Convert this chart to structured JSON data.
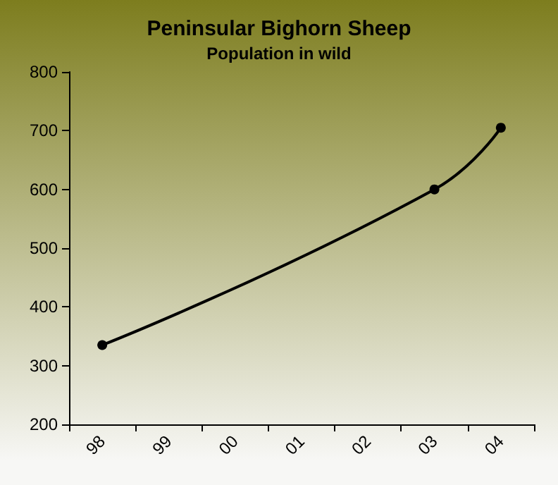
{
  "chart_data": {
    "type": "line",
    "title": "Peninsular Bighorn Sheep",
    "subtitle": "Population in wild",
    "categories": [
      "98",
      "99",
      "00",
      "01",
      "02",
      "03",
      "04"
    ],
    "series": [
      {
        "color": "#000000",
        "values": [
          335,
          null,
          null,
          null,
          null,
          600,
          705
        ]
      }
    ],
    "ylim": [
      200,
      800
    ],
    "yticks": [
      200,
      300,
      400,
      500,
      600,
      700,
      800
    ],
    "marker": "circle",
    "line_style": "solid"
  }
}
